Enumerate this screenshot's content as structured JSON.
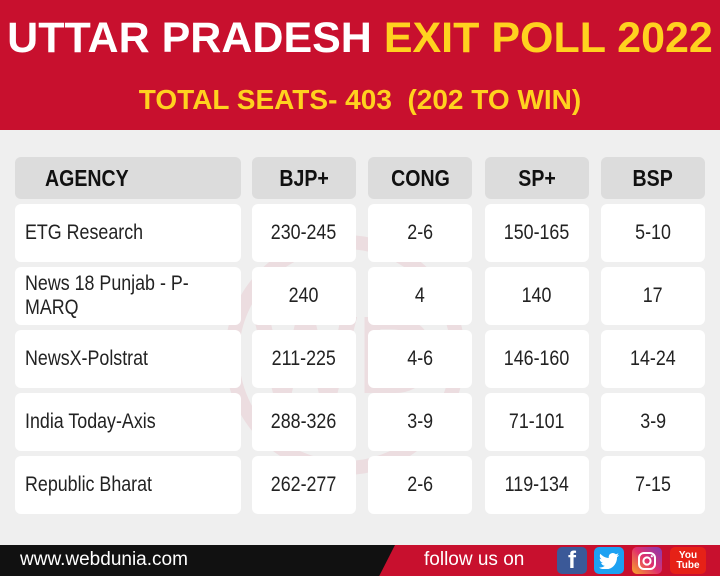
{
  "header": {
    "title_white": "UTTAR PRADESH",
    "title_yellow": "EXIT POLL 2022",
    "subtitle": "TOTAL SEATS- 403",
    "subtitle_note": "(202 TO WIN)"
  },
  "watermark": "WD",
  "table": {
    "columns": [
      "AGENCY",
      "BJP+",
      "CONG",
      "SP+",
      "BSP"
    ],
    "rows": [
      [
        "ETG Research",
        "230-245",
        "2-6",
        "150-165",
        "5-10"
      ],
      [
        "News 18 Punjab - P-MARQ",
        "240",
        "4",
        "140",
        "17"
      ],
      [
        "NewsX-Polstrat",
        "211-225",
        "4-6",
        "146-160",
        "14-24"
      ],
      [
        "India Today-Axis",
        "288-326",
        "3-9",
        "71-101",
        "3-9"
      ],
      [
        "Republic Bharat",
        "262-277",
        "2-6",
        "119-134",
        "7-15"
      ]
    ]
  },
  "footer": {
    "website": "www.webdunia.com",
    "follow": "follow us on",
    "icons": [
      "f",
      "You Tube"
    ]
  }
}
